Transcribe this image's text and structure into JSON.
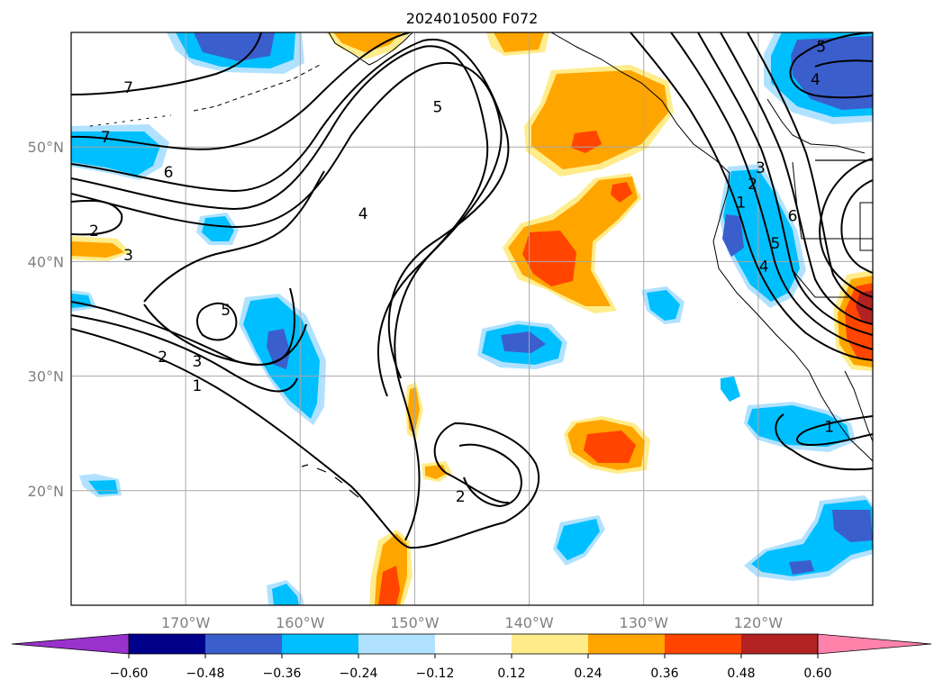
{
  "title": "2024010500 F072",
  "map": {
    "projection": "plate-carree",
    "lon_range": [
      -180,
      -110
    ],
    "lat_range": [
      10,
      60
    ],
    "gridline_color": "#a9a9a9",
    "lat_ticks": [
      {
        "value": 50,
        "label": "50°N"
      },
      {
        "value": 40,
        "label": "40°N"
      },
      {
        "value": 30,
        "label": "30°N"
      },
      {
        "value": 20,
        "label": "20°N"
      }
    ],
    "lon_ticks": [
      {
        "value": -170,
        "label": "170°W"
      },
      {
        "value": -160,
        "label": "160°W"
      },
      {
        "value": -150,
        "label": "150°W"
      },
      {
        "value": -140,
        "label": "140°W"
      },
      {
        "value": -130,
        "label": "130°W"
      },
      {
        "value": -120,
        "label": "120°W"
      }
    ]
  },
  "contour_labels": [
    {
      "text": "7",
      "lon": -175,
      "lat": 55.2
    },
    {
      "text": "7",
      "lon": -177,
      "lat": 50.9
    },
    {
      "text": "6",
      "lon": -171.5,
      "lat": 47.8
    },
    {
      "text": "5",
      "lon": -148,
      "lat": 53.5
    },
    {
      "text": "4",
      "lon": -154.5,
      "lat": 44.2
    },
    {
      "text": "2",
      "lon": -178,
      "lat": 42.7
    },
    {
      "text": "3",
      "lon": -175,
      "lat": 40.6
    },
    {
      "text": "5",
      "lon": -166.5,
      "lat": 35.8
    },
    {
      "text": "2",
      "lon": -172,
      "lat": 31.7
    },
    {
      "text": "3",
      "lon": -169,
      "lat": 31.3
    },
    {
      "text": "1",
      "lon": -169,
      "lat": 29.2
    },
    {
      "text": "2",
      "lon": -146,
      "lat": 19.5
    },
    {
      "text": "1",
      "lon": -121.5,
      "lat": 45.2
    },
    {
      "text": "2",
      "lon": -120.5,
      "lat": 46.8
    },
    {
      "text": "3",
      "lon": -119.8,
      "lat": 48.2
    },
    {
      "text": "5",
      "lon": -118.5,
      "lat": 41.6
    },
    {
      "text": "4",
      "lon": -119.5,
      "lat": 39.6
    },
    {
      "text": "6",
      "lon": -117,
      "lat": 44.0
    },
    {
      "text": "5",
      "lon": -114.5,
      "lat": 58.8
    },
    {
      "text": "4",
      "lon": -115,
      "lat": 55.9
    },
    {
      "text": "1",
      "lon": -113.8,
      "lat": 25.6
    }
  ],
  "colorbar": {
    "colors": [
      "#9932cc",
      "#00008b",
      "#3a5fcd",
      "#00bfff",
      "#b0e2ff",
      "#ffffff",
      "#ffec8b",
      "#ffa500",
      "#ff4500",
      "#b22222",
      "#ff82ab"
    ],
    "ticks": [
      "−0.60",
      "−0.48",
      "−0.36",
      "−0.24",
      "−0.12",
      "0.12",
      "0.24",
      "0.36",
      "0.48",
      "0.60"
    ]
  }
}
